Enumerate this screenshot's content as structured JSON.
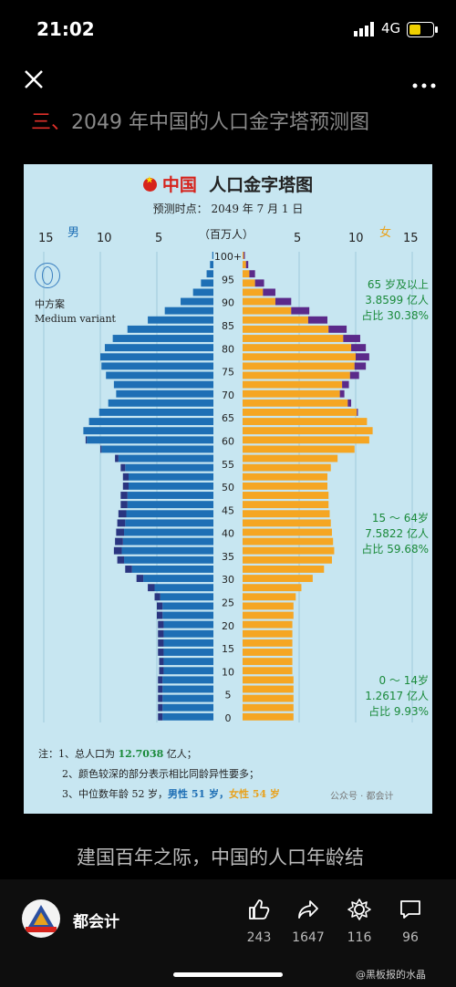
{
  "status": {
    "time": "21:02",
    "network": "4G"
  },
  "header": {
    "close_icon": "close-icon",
    "more_icon": "more-icon"
  },
  "heading": {
    "prefix": "三、",
    "text": "2049 年中国的人口金字塔预测图"
  },
  "poster": {
    "title_cn": "中国",
    "title_rest": "人口金字塔图",
    "date_label": "预测时点：  2049 年 7 月 1 日",
    "male_label": "男",
    "female_label": "女",
    "unit_label": "（百万人）",
    "left_ticks": [
      "15",
      "10",
      "5"
    ],
    "right_ticks": [
      "5",
      "10",
      "15"
    ],
    "variant_cn": "中方案",
    "variant_en": "Medium variant",
    "groups": [
      {
        "l1": "65 岁及以上",
        "l2": "3.8599 亿人",
        "l3": "占比 30.38%"
      },
      {
        "l1": "15 ～ 64岁",
        "l2": "7.5822 亿人",
        "l3": "占比 59.68%"
      },
      {
        "l1": "0 ～ 14岁",
        "l2": "1.2617 亿人",
        "l3": "占比 9.93%"
      }
    ],
    "notes": {
      "n1_pre": "注：1、总人口为 ",
      "n1_val": "12.7038",
      "n1_post": " 亿人；",
      "n2": "2、颜色较深的部分表示相比同龄异性要多；",
      "n3_pre": "3、中位数年龄 52 岁，",
      "n3_male": "男性 51 岁，",
      "n3_female": "女性 54 岁"
    },
    "watermark": "公众号 · 都会计"
  },
  "chart_data": {
    "type": "bar",
    "title": "中国 人口金字塔图",
    "subtitle": "预测时点：2049 年 7 月 1 日",
    "xlabel": "（百万人）",
    "xlim": [
      0,
      15
    ],
    "age_ticks": [
      "0",
      "5",
      "10",
      "15",
      "20",
      "25",
      "30",
      "35",
      "40",
      "45",
      "50",
      "55",
      "60",
      "65",
      "70",
      "75",
      "80",
      "85",
      "90",
      "95",
      "100+"
    ],
    "ages": [
      0,
      2,
      4,
      6,
      8,
      10,
      12,
      14,
      16,
      18,
      20,
      22,
      24,
      26,
      28,
      30,
      32,
      34,
      36,
      38,
      40,
      42,
      44,
      46,
      48,
      50,
      52,
      54,
      56,
      58,
      60,
      62,
      64,
      66,
      68,
      70,
      72,
      74,
      76,
      78,
      80,
      82,
      84,
      86,
      88,
      90,
      92,
      94,
      96,
      98,
      100
    ],
    "series": [
      {
        "name": "男",
        "color": "#1e6fb5",
        "values": [
          4.9,
          4.9,
          4.9,
          4.9,
          4.9,
          4.8,
          4.8,
          4.9,
          4.9,
          4.9,
          4.9,
          5.0,
          5.0,
          5.2,
          5.8,
          6.8,
          7.8,
          8.5,
          8.8,
          8.7,
          8.6,
          8.5,
          8.4,
          8.2,
          8.2,
          8.0,
          8.0,
          8.2,
          8.7,
          10.0,
          11.3,
          11.5,
          11.0,
          10.1,
          9.3,
          8.6,
          8.8,
          9.5,
          9.9,
          10.0,
          9.6,
          8.9,
          7.6,
          5.8,
          4.3,
          2.9,
          1.8,
          1.1,
          0.6,
          0.3,
          0.1
        ]
      },
      {
        "name": "女",
        "color": "#f5a623",
        "values": [
          4.5,
          4.5,
          4.5,
          4.5,
          4.5,
          4.4,
          4.4,
          4.4,
          4.4,
          4.4,
          4.4,
          4.5,
          4.5,
          4.7,
          5.2,
          6.2,
          7.2,
          7.9,
          8.1,
          8.0,
          7.9,
          7.8,
          7.7,
          7.6,
          7.6,
          7.5,
          7.5,
          7.8,
          8.4,
          9.9,
          11.2,
          11.5,
          11.0,
          10.2,
          9.6,
          9.0,
          9.4,
          10.3,
          10.9,
          11.2,
          10.9,
          10.4,
          9.2,
          7.5,
          5.9,
          4.3,
          2.9,
          1.9,
          1.1,
          0.5,
          0.2
        ]
      }
    ]
  },
  "body_text": "建国百年之际，中国的人口年龄结",
  "footer": {
    "author": "都会计",
    "likes": "243",
    "shares": "1647",
    "collects": "116",
    "comments": "96",
    "credit": "@黑板报的水晶"
  }
}
